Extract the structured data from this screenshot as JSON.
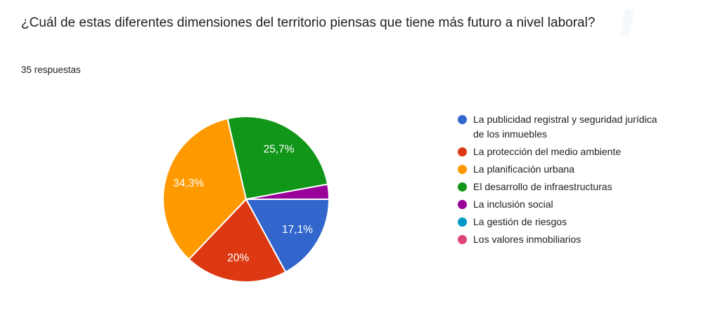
{
  "header": {
    "question": "¿Cuál de estas diferentes dimensiones del territorio piensas que tiene más futuro a nivel laboral?",
    "responses_label": "35 respuestas"
  },
  "chart_data": {
    "type": "pie",
    "title": "¿Cuál de estas diferentes dimensiones del territorio piensas que tiene más futuro a nivel laboral?",
    "subtitle": "35 respuestas",
    "legend_position": "right",
    "start_angle_deg": 90,
    "categories": [
      "La publicidad registral y seguridad jurídica de los inmuebles",
      "La protección del medio ambiente",
      "La planificación urbana",
      "El desarrollo de infraestructuras",
      "La inclusión social",
      "La gestión de riesgos",
      "Los valores inmobiliarios"
    ],
    "values_pct": [
      17.1,
      20,
      34.3,
      25.7,
      2.9,
      0,
      0
    ],
    "slice_labels": [
      "17,1%",
      "20%",
      "34,3%",
      "25,7%",
      "",
      "",
      ""
    ],
    "colors": [
      "#3366CC",
      "#DC3912",
      "#FF9900",
      "#109618",
      "#990099",
      "#0099C6",
      "#DD4477"
    ]
  }
}
